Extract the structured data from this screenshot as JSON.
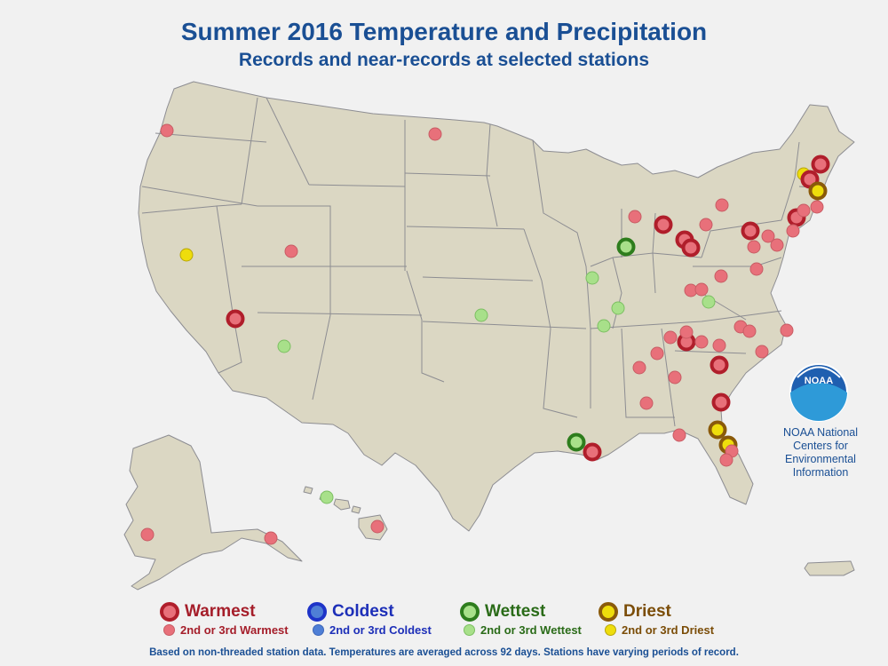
{
  "header": {
    "title": "Summer 2016 Temperature and Precipitation",
    "subtitle": "Records and near-records at selected stations"
  },
  "noaa": {
    "logo_text": "NOAA",
    "caption": [
      "NOAA National",
      "Centers for",
      "Environmental",
      "Information"
    ]
  },
  "legend": {
    "warmest": "Warmest",
    "warm23": "2nd or 3rd Warmest",
    "coldest": "Coldest",
    "cold23": "2nd or 3rd Coldest",
    "wettest": "Wettest",
    "wet23": "2nd or 3rd Wettest",
    "driest": "Driest",
    "dry23": "2nd or 3rd Driest"
  },
  "footnote": "Based on non-threaded station data. Temperatures are averaged across 92 days. Stations have varying periods of record.",
  "colors": {
    "warm_fill": "#e8707a",
    "warm_ring": "#b01e2b",
    "cold_fill": "#4f7fd6",
    "cold_ring": "#1e34c8",
    "wet_fill": "#a8e08a",
    "wet_ring": "#2e7d1d",
    "dry_fill": "#eedd0c",
    "dry_ring": "#8a5a0a",
    "legend_warm": "#a51e2a",
    "legend_cold": "#1d2fb8",
    "legend_wet": "#2a6b18",
    "legend_dry": "#7b4d08"
  },
  "map_symbols": {
    "categories": {
      "warmest": "record",
      "warm23": "near-record",
      "wettest": "record",
      "wet23": "near-record",
      "driest": "record",
      "dry23": "near-record"
    }
  }
}
